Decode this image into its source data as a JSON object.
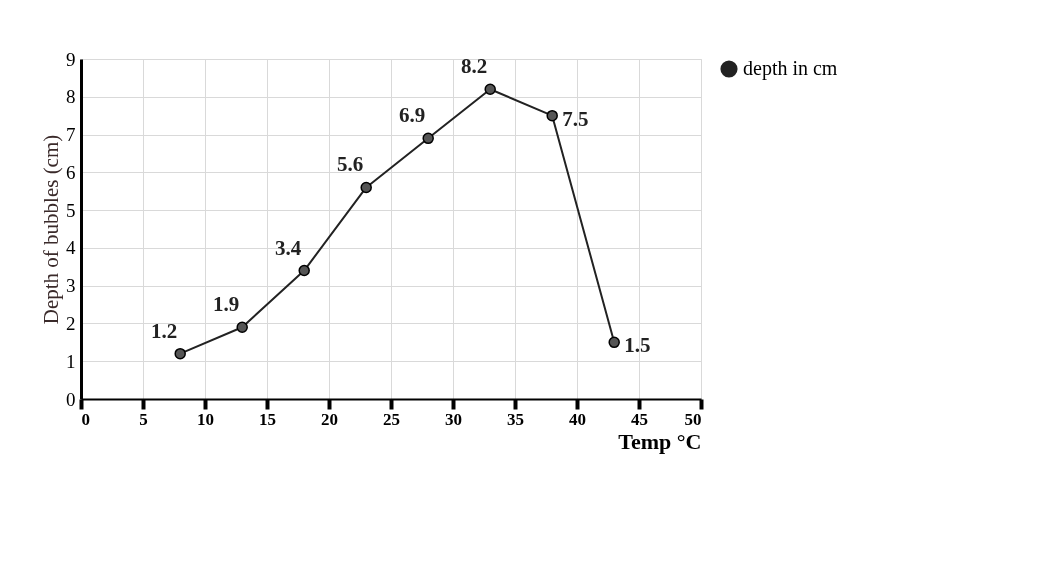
{
  "chart_data": {
    "type": "line",
    "xlabel": "Temp °C",
    "ylabel": "Depth  of bubbles (cm)",
    "x": [
      8,
      13,
      18,
      23,
      28,
      33,
      38,
      43
    ],
    "series": [
      {
        "name": "depth in cm",
        "color": "#222222",
        "values": [
          1.2,
          1.9,
          3.4,
          5.6,
          6.9,
          8.2,
          7.5,
          1.5
        ]
      }
    ],
    "xlim": [
      0,
      50
    ],
    "xticks": [
      0,
      5,
      10,
      15,
      20,
      25,
      30,
      35,
      40,
      45,
      50
    ],
    "ylim": [
      0,
      9
    ],
    "yticks": [
      0,
      1,
      2,
      3,
      4,
      5,
      6,
      7,
      8,
      9
    ],
    "grid": true,
    "legend": "right",
    "marker": "circle",
    "line_style": "solid",
    "data_labels": true
  }
}
